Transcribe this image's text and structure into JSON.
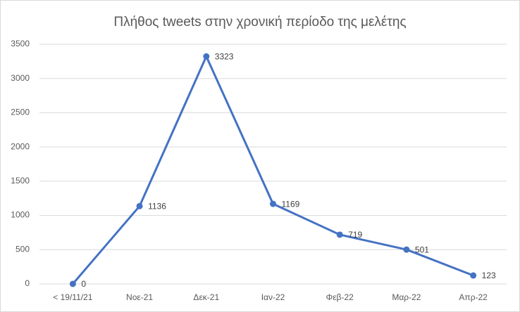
{
  "chart_data": {
    "type": "line",
    "title": "Πλήθος tweets στην χρονική περίοδο της μελέτης",
    "categories": [
      "< 19/11/21",
      "Νοε-21",
      "Δεκ-21",
      "Ιαν-22",
      "Φεβ-22",
      "Μαρ-22",
      "Απρ-22"
    ],
    "values": [
      0,
      1136,
      3323,
      1169,
      719,
      501,
      123
    ],
    "color": "#4472c4",
    "ylim": [
      0,
      3500
    ],
    "yticks": [
      0,
      500,
      1000,
      1500,
      2000,
      2500,
      3000,
      3500
    ],
    "grid": true
  }
}
